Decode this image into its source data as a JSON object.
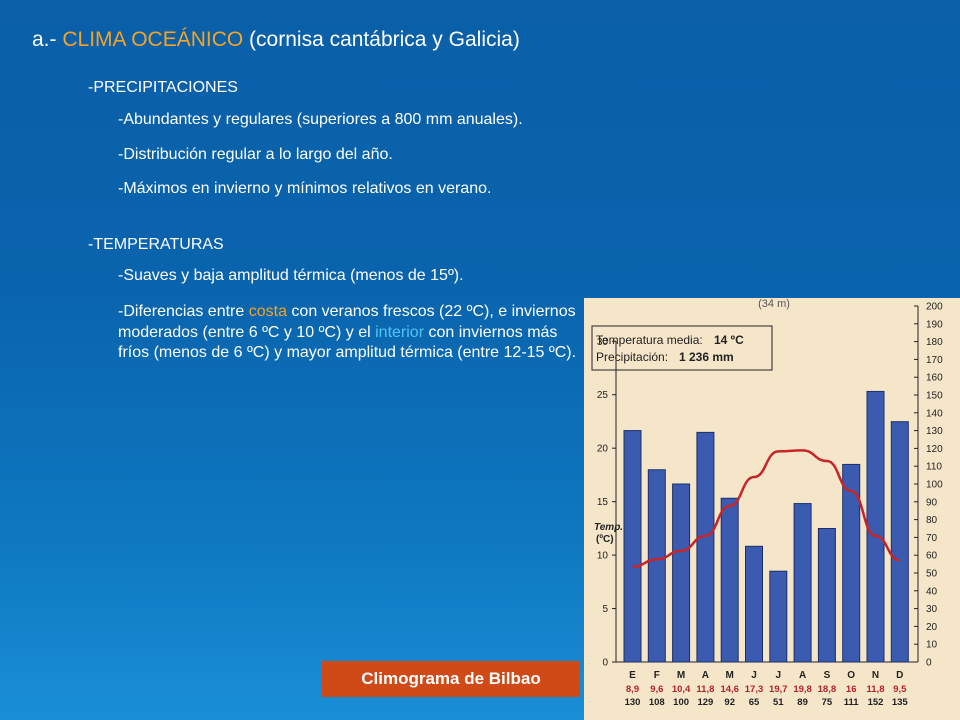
{
  "heading": {
    "prefix": "a.- ",
    "highlight": "CLIMA OCEÁNICO",
    "suffix": " (cornisa cantábrica y Galicia)"
  },
  "precipitaciones": {
    "title": "-PRECIPITACIONES",
    "items": [
      "-Abundantes y regulares (superiores a 800 mm anuales).",
      "-Distribución regular a lo largo del año.",
      "-Máximos en invierno y mínimos relativos en verano."
    ]
  },
  "temperaturas": {
    "title": "-TEMPERATURAS",
    "item1": "-Suaves y baja amplitud térmica (menos de 15º).",
    "para": {
      "p1": "-Diferencias entre ",
      "costa": "costa",
      "p2": " con veranos frescos (22 ºC), e inviernos moderados (entre 6 ºC y 10 ºC) y el ",
      "interior": "interior",
      "p3": " con inviernos más fríos (menos de 6 ºC) y mayor amplitud térmica (entre 12-15 ºC)."
    }
  },
  "caption": "Climograma de Bilbao",
  "colors": {
    "accent_orange": "#f5a326",
    "accent_blue": "#4fc6f2",
    "bar": "#3b5bb0",
    "temp_line": "#c8252a",
    "label_bg": "#cf4a16"
  },
  "chart_data": {
    "type": "bar",
    "info": {
      "temp_label": "Temperatura media:",
      "temp_value": "14 ºC",
      "precip_label": "Precipitación:",
      "precip_value": "1 236 mm"
    },
    "temp_axis_label": [
      "Temp.",
      "(ºC)"
    ],
    "top_fragment": "(34 m)",
    "months": [
      "E",
      "F",
      "M",
      "A",
      "M",
      "J",
      "J",
      "A",
      "S",
      "O",
      "N",
      "D"
    ],
    "temp_labels": [
      "8,9",
      "9,6",
      "10,4",
      "11,8",
      "14,6",
      "17,3",
      "19,7",
      "19,8",
      "18,8",
      "16",
      "11,8",
      "9,5"
    ],
    "precip_labels": [
      "130",
      "108",
      "100",
      "129",
      "92",
      "65",
      "51",
      "89",
      "75",
      "111",
      "152",
      "135"
    ],
    "temperature": [
      8.9,
      9.6,
      10.4,
      11.8,
      14.6,
      17.3,
      19.7,
      19.8,
      18.8,
      16,
      11.8,
      9.5
    ],
    "precipitation": [
      130,
      108,
      100,
      129,
      92,
      65,
      51,
      89,
      75,
      111,
      152,
      135
    ],
    "precip_ticks": [
      0,
      10,
      20,
      30,
      40,
      50,
      60,
      70,
      80,
      90,
      100,
      110,
      120,
      130,
      140,
      150,
      160,
      170,
      180,
      190,
      200
    ],
    "temp_ticks": [
      0,
      5,
      10,
      15,
      20,
      25,
      30
    ],
    "precip_range": [
      0,
      200
    ],
    "temp_range": [
      0,
      33.3
    ]
  }
}
